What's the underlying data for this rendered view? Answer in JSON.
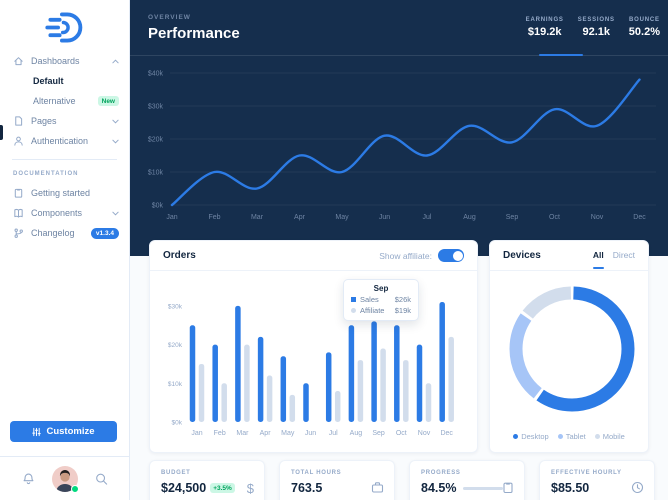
{
  "colors": {
    "primary": "#2c7be5",
    "navy": "#152e4d",
    "muted_dark": "#6e84a3",
    "muted_light": "#95aac9",
    "pale": "#d2ddec",
    "light_blue": "#a6c5f7",
    "green": "#00d97e"
  },
  "sidebar": {
    "items": [
      {
        "label": "Dashboards",
        "icon": "home-icon",
        "chevron": "up"
      },
      {
        "label": "Default",
        "active": true
      },
      {
        "label": "Alternative",
        "badge": "New"
      },
      {
        "label": "Pages",
        "icon": "file-icon",
        "chevron": "down"
      },
      {
        "label": "Authentication",
        "icon": "user-icon",
        "chevron": "down"
      }
    ],
    "section_label": "DOCUMENTATION",
    "docs": [
      {
        "label": "Getting started",
        "icon": "clipboard-icon"
      },
      {
        "label": "Components",
        "icon": "book-icon",
        "chevron": "down"
      },
      {
        "label": "Changelog",
        "icon": "branch-icon",
        "badge": "v1.3.4"
      }
    ],
    "customize_label": "Customize"
  },
  "header": {
    "overview_label": "OVERVIEW",
    "title": "Performance",
    "stats": [
      {
        "label": "EARNINGS",
        "value": "$19.2k",
        "active": true
      },
      {
        "label": "SESSIONS",
        "value": "92.1k",
        "active": false
      },
      {
        "label": "BOUNCE",
        "value": "50.2%",
        "active": false
      }
    ]
  },
  "orders": {
    "title": "Orders",
    "toggle_label": "Show affiliate:",
    "toggle_on": true,
    "tooltip": {
      "title": "Sep",
      "rows": [
        {
          "label": "Sales",
          "value": "$26k"
        },
        {
          "label": "Affiliate",
          "value": "$19k"
        }
      ]
    }
  },
  "devices": {
    "title": "Devices",
    "tabs": [
      {
        "label": "All",
        "active": true
      },
      {
        "label": "Direct",
        "active": false
      }
    ],
    "legend": [
      "Desktop",
      "Tablet",
      "Mobile"
    ]
  },
  "kpis": [
    {
      "label": "BUDGET",
      "value": "$24,500",
      "badge": "+3.5%",
      "icon": "dollar-icon"
    },
    {
      "label": "TOTAL HOURS",
      "value": "763.5",
      "icon": "briefcase-icon"
    },
    {
      "label": "PROGRESS",
      "value": "84.5%",
      "progress": 84.5,
      "icon": "clipboard-check-icon"
    },
    {
      "label": "EFFECTIVE HOURLY",
      "value": "$85.50",
      "icon": "clock-icon"
    }
  ],
  "chart_data": [
    {
      "id": "performance",
      "type": "line",
      "title": "Performance",
      "x": [
        "Jan",
        "Feb",
        "Mar",
        "Apr",
        "May",
        "Jun",
        "Jul",
        "Aug",
        "Sep",
        "Oct",
        "Nov",
        "Dec"
      ],
      "series": [
        {
          "name": "Earnings",
          "values": [
            0,
            10,
            5,
            15,
            10,
            21,
            15,
            24,
            19,
            29,
            24,
            38
          ]
        }
      ],
      "ylim": [
        0,
        40
      ],
      "yticks": [
        0,
        10,
        20,
        30,
        40
      ],
      "ytick_labels": [
        "$0k",
        "$10k",
        "$20k",
        "$30k",
        "$40k"
      ],
      "grid": true,
      "line_color": "#2c7be5"
    },
    {
      "id": "orders",
      "type": "bar",
      "categories": [
        "Jan",
        "Feb",
        "Mar",
        "Apr",
        "May",
        "Jun",
        "Jul",
        "Aug",
        "Sep",
        "Oct",
        "Nov",
        "Dec"
      ],
      "series": [
        {
          "name": "Sales",
          "color": "#2c7be5",
          "values": [
            25,
            20,
            30,
            22,
            17,
            10,
            18,
            25,
            26,
            25,
            20,
            31
          ]
        },
        {
          "name": "Affiliate",
          "color": "#d2ddec",
          "values": [
            15,
            10,
            20,
            12,
            7,
            0,
            8,
            16,
            19,
            16,
            10,
            22
          ]
        }
      ],
      "ylim": [
        0,
        35
      ],
      "yticks": [
        0,
        10,
        20,
        30
      ],
      "ytick_labels": [
        "$0k",
        "$10k",
        "$20k",
        "$30k"
      ]
    },
    {
      "id": "devices",
      "type": "pie",
      "donut": true,
      "labels": [
        "Desktop",
        "Tablet",
        "Mobile"
      ],
      "values": [
        60,
        25,
        15
      ],
      "colors": [
        "#2c7be5",
        "#a6c5f7",
        "#d2ddec"
      ],
      "legend_position": "bottom"
    }
  ]
}
